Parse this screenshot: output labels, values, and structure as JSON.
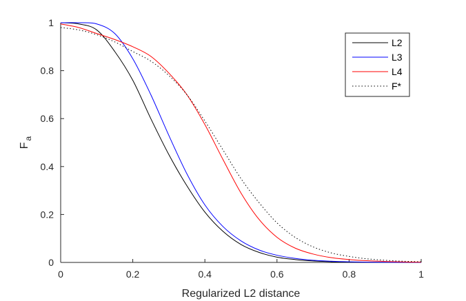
{
  "chart_data": {
    "type": "line",
    "title": "",
    "xlabel": "Regularized L2 distance",
    "ylabel": "F",
    "ylabel_subscript": "a",
    "xlim": [
      0,
      1
    ],
    "ylim": [
      0,
      1
    ],
    "xticks": [
      "0",
      "0.2",
      "0.4",
      "0.6",
      "0.8",
      "1"
    ],
    "yticks": [
      "0",
      "0.2",
      "0.4",
      "0.6",
      "0.8",
      "1"
    ],
    "x_tick_values": [
      0,
      0.2,
      0.4,
      0.6,
      0.8,
      1
    ],
    "y_tick_values": [
      0,
      0.2,
      0.4,
      0.6,
      0.8,
      1
    ],
    "grid": false,
    "legend_position": "top-right",
    "series": [
      {
        "name": "L2",
        "color": "#000000",
        "style": "solid",
        "x": [
          0,
          0.05,
          0.1,
          0.15,
          0.2,
          0.25,
          0.3,
          0.35,
          0.4,
          0.45,
          0.5,
          0.55,
          0.6,
          0.65,
          0.7,
          0.75,
          0.8,
          0.85,
          0.9,
          0.95,
          1
        ],
        "y": [
          1.0,
          0.995,
          0.97,
          0.88,
          0.76,
          0.6,
          0.45,
          0.32,
          0.21,
          0.13,
          0.075,
          0.042,
          0.022,
          0.012,
          0.006,
          0.003,
          0.0015,
          0.0008,
          0.0004,
          0.0002,
          0.0001
        ]
      },
      {
        "name": "L3",
        "color": "#0000ff",
        "style": "solid",
        "x": [
          0,
          0.05,
          0.1,
          0.15,
          0.2,
          0.25,
          0.3,
          0.35,
          0.4,
          0.45,
          0.5,
          0.55,
          0.6,
          0.65,
          0.7,
          0.75,
          0.8,
          0.85,
          0.9,
          0.95,
          1
        ],
        "y": [
          1.0,
          1.0,
          0.995,
          0.955,
          0.85,
          0.7,
          0.53,
          0.37,
          0.24,
          0.15,
          0.09,
          0.052,
          0.03,
          0.017,
          0.009,
          0.005,
          0.0025,
          0.0012,
          0.0006,
          0.0003,
          0.0001
        ]
      },
      {
        "name": "L4",
        "color": "#ff0000",
        "style": "solid",
        "x": [
          0,
          0.05,
          0.1,
          0.15,
          0.2,
          0.25,
          0.3,
          0.35,
          0.4,
          0.45,
          0.5,
          0.55,
          0.6,
          0.65,
          0.7,
          0.75,
          0.8,
          0.85,
          0.9,
          0.95,
          1
        ],
        "y": [
          0.995,
          0.98,
          0.955,
          0.93,
          0.9,
          0.86,
          0.79,
          0.7,
          0.575,
          0.43,
          0.29,
          0.18,
          0.105,
          0.06,
          0.035,
          0.02,
          0.012,
          0.007,
          0.004,
          0.002,
          0.001
        ]
      },
      {
        "name": "F*",
        "color": "#000000",
        "style": "dotted",
        "x": [
          0,
          0.05,
          0.1,
          0.15,
          0.2,
          0.25,
          0.3,
          0.35,
          0.4,
          0.45,
          0.5,
          0.55,
          0.6,
          0.65,
          0.7,
          0.75,
          0.8,
          0.85,
          0.9,
          0.95,
          1
        ],
        "y": [
          0.98,
          0.97,
          0.95,
          0.92,
          0.88,
          0.84,
          0.78,
          0.7,
          0.59,
          0.47,
          0.35,
          0.25,
          0.165,
          0.105,
          0.065,
          0.04,
          0.025,
          0.015,
          0.009,
          0.005,
          0.003
        ]
      }
    ]
  }
}
